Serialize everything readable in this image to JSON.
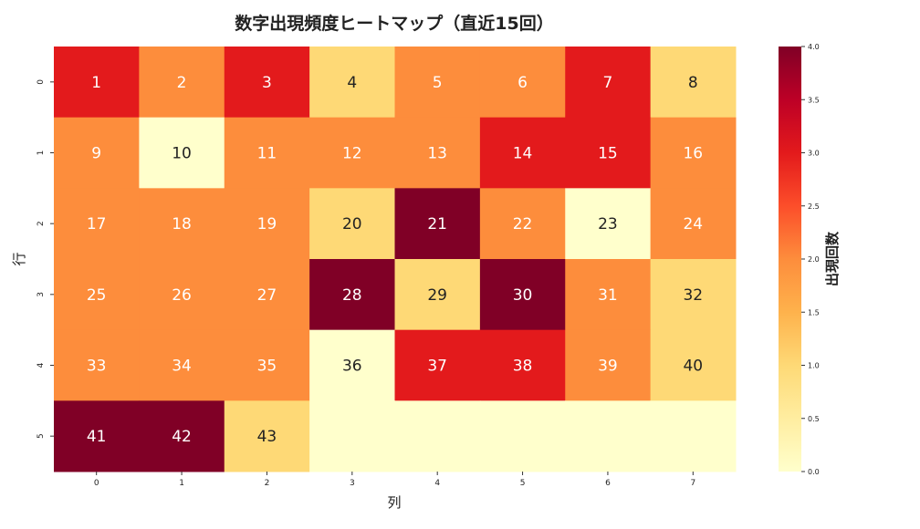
{
  "chart_data": {
    "type": "heatmap",
    "title": "数字出現頻度ヒートマップ（直近15回）",
    "xlabel": "列",
    "ylabel": "行",
    "colorbar_label": "出現回数",
    "colormap": "YlOrRd",
    "vmin": 0,
    "vmax": 4,
    "colorbar_ticks": [
      "0.0",
      "0.5",
      "1.0",
      "1.5",
      "2.0",
      "2.5",
      "3.0",
      "3.5",
      "4.0"
    ],
    "x_ticks": [
      "0",
      "1",
      "2",
      "3",
      "4",
      "5",
      "6",
      "7"
    ],
    "y_ticks": [
      "0",
      "1",
      "2",
      "3",
      "4",
      "5"
    ],
    "values": [
      [
        3,
        2,
        3,
        1,
        2,
        2,
        3,
        1
      ],
      [
        2,
        0,
        2,
        2,
        2,
        3,
        3,
        2
      ],
      [
        2,
        2,
        2,
        1,
        4,
        2,
        0,
        2
      ],
      [
        2,
        2,
        2,
        4,
        1,
        4,
        2,
        1
      ],
      [
        2,
        2,
        2,
        0,
        3,
        3,
        2,
        1
      ],
      [
        4,
        4,
        1,
        0,
        0,
        0,
        0,
        0
      ]
    ],
    "annotations": [
      [
        "1",
        "2",
        "3",
        "4",
        "5",
        "6",
        "7",
        "8"
      ],
      [
        "9",
        "10",
        "11",
        "12",
        "13",
        "14",
        "15",
        "16"
      ],
      [
        "17",
        "18",
        "19",
        "20",
        "21",
        "22",
        "23",
        "24"
      ],
      [
        "25",
        "26",
        "27",
        "28",
        "29",
        "30",
        "31",
        "32"
      ],
      [
        "33",
        "34",
        "35",
        "36",
        "37",
        "38",
        "39",
        "40"
      ],
      [
        "41",
        "42",
        "43",
        "",
        "",
        "",
        "",
        ""
      ]
    ],
    "colors": [
      "#ffffcc",
      "#fed976",
      "#fd8d3c",
      "#e31a1c",
      "#800026"
    ]
  }
}
